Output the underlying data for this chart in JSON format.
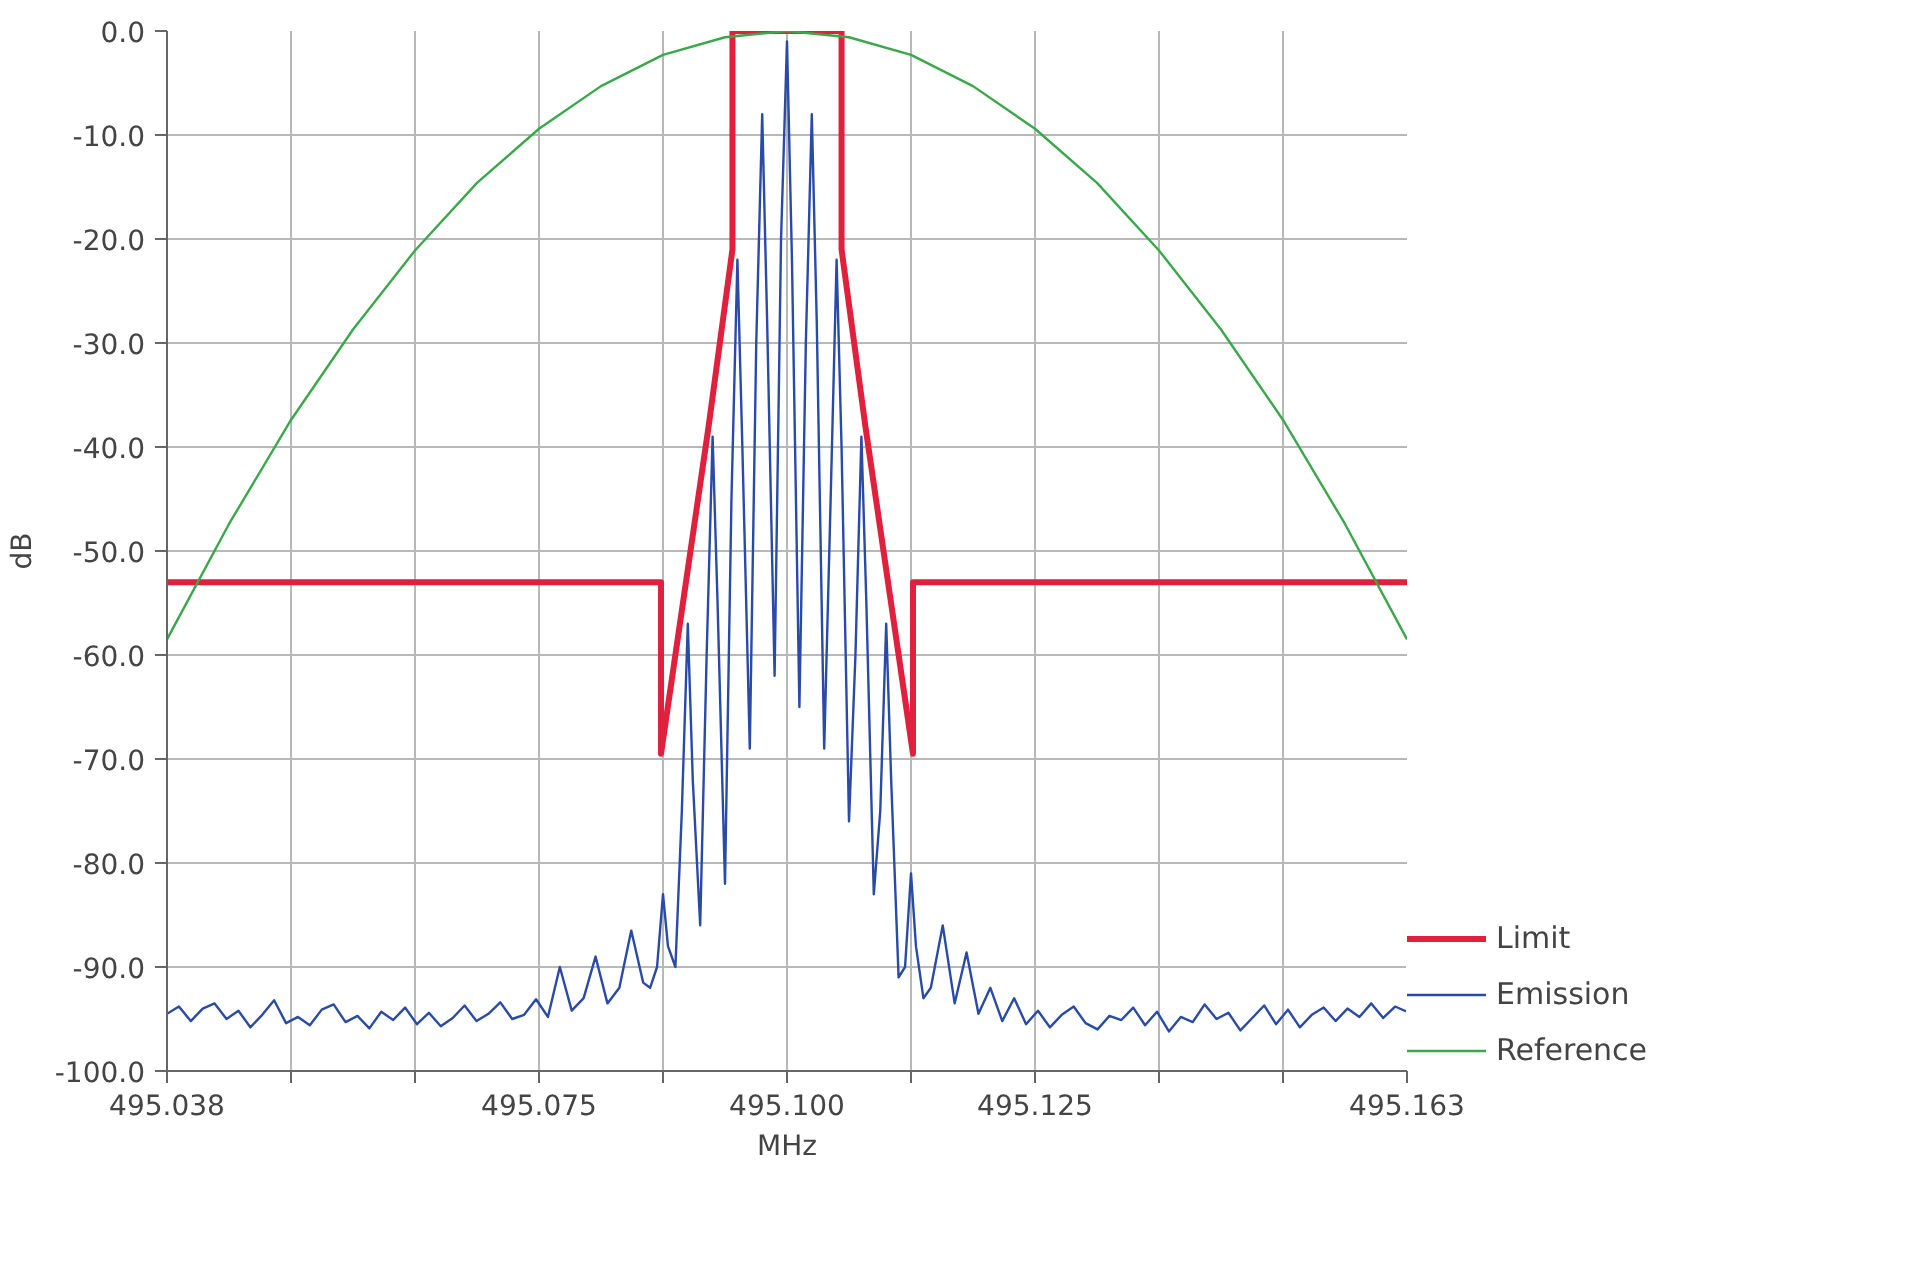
{
  "chart_data": {
    "type": "line",
    "xlabel": "MHz",
    "ylabel": "dB",
    "xlim": [
      495.0375,
      495.1625
    ],
    "ylim": [
      -100,
      0
    ],
    "xticks": [
      {
        "value": 495.0375,
        "label": "495.038"
      },
      {
        "value": 495.05,
        "label": null
      },
      {
        "value": 495.0625,
        "label": null
      },
      {
        "value": 495.075,
        "label": "495.075"
      },
      {
        "value": 495.0875,
        "label": null
      },
      {
        "value": 495.1,
        "label": "495.100"
      },
      {
        "value": 495.1125,
        "label": null
      },
      {
        "value": 495.125,
        "label": "495.125"
      },
      {
        "value": 495.1375,
        "label": null
      },
      {
        "value": 495.15,
        "label": null
      },
      {
        "value": 495.1625,
        "label": "495.163"
      }
    ],
    "yticks": [
      {
        "value": 0,
        "label": "0.0"
      },
      {
        "value": -10,
        "label": "-10.0"
      },
      {
        "value": -20,
        "label": "-20.0"
      },
      {
        "value": -30,
        "label": "-30.0"
      },
      {
        "value": -40,
        "label": "-40.0"
      },
      {
        "value": -50,
        "label": "-50.0"
      },
      {
        "value": -60,
        "label": "-60.0"
      },
      {
        "value": -70,
        "label": "-70.0"
      },
      {
        "value": -80,
        "label": "-80.0"
      },
      {
        "value": -90,
        "label": "-90.0"
      },
      {
        "value": -100,
        "label": "-100.0"
      }
    ],
    "grid": true,
    "legend": "right",
    "line_style": "solid",
    "series": [
      {
        "name": "Limit",
        "color": "#e0203c",
        "x": [
          495.0375,
          495.0873,
          495.0873,
          495.0921,
          495.0945,
          495.0945,
          495.1055,
          495.1055,
          495.1079,
          495.1127,
          495.1127,
          495.1625
        ],
        "values": [
          -53,
          -53,
          -69.5,
          -38,
          -21,
          0,
          0,
          -21,
          -38,
          -69.5,
          -53,
          -53
        ]
      },
      {
        "name": "Emission",
        "color": "#2a4aa8",
        "x": [
          495.0375,
          495.0387,
          495.0399,
          495.0411,
          495.0423,
          495.0435,
          495.0447,
          495.0459,
          495.0471,
          495.0483,
          495.0495,
          495.0507,
          495.0519,
          495.0531,
          495.0543,
          495.0555,
          495.0567,
          495.0579,
          495.0591,
          495.0603,
          495.0615,
          495.0627,
          495.0639,
          495.0651,
          495.0663,
          495.0675,
          495.0687,
          495.0699,
          495.0711,
          495.0723,
          495.0735,
          495.0747,
          495.0759,
          495.0771,
          495.0783,
          495.0795,
          495.0807,
          495.0819,
          495.0831,
          495.0843,
          495.0855,
          495.0862,
          495.0869,
          495.0875,
          495.088,
          495.08875,
          495.0894,
          495.09,
          495.0905,
          495.09125,
          495.0919,
          495.0925,
          495.093,
          495.09375,
          495.0944,
          495.095,
          495.0955,
          495.09625,
          495.0969,
          495.0975,
          495.098,
          495.09875,
          495.0994,
          495.1,
          495.1005,
          495.10125,
          495.1019,
          495.1025,
          495.103,
          495.10375,
          495.1044,
          495.105,
          495.1055,
          495.10625,
          495.1069,
          495.1075,
          495.108,
          495.10875,
          495.1094,
          495.11,
          495.1105,
          495.11125,
          495.1119,
          495.1125,
          495.113,
          495.11375,
          495.1145,
          495.1157,
          495.1169,
          495.1181,
          495.1193,
          495.1205,
          495.1217,
          495.1229,
          495.1241,
          495.1253,
          495.1265,
          495.1277,
          495.1289,
          495.1301,
          495.1313,
          495.1325,
          495.1337,
          495.1349,
          495.1361,
          495.1373,
          495.1385,
          495.1397,
          495.1409,
          495.1421,
          495.1433,
          495.1445,
          495.1457,
          495.1469,
          495.1481,
          495.1493,
          495.1505,
          495.1517,
          495.1529,
          495.1541,
          495.1553,
          495.1565,
          495.1577,
          495.1589,
          495.1601,
          495.1613,
          495.1625
        ],
        "values": [
          -94.5,
          -93.8,
          -95.2,
          -94.0,
          -93.5,
          -95.0,
          -94.2,
          -95.8,
          -94.6,
          -93.2,
          -95.4,
          -94.8,
          -95.6,
          -94.1,
          -93.6,
          -95.3,
          -94.7,
          -95.9,
          -94.3,
          -95.1,
          -93.9,
          -95.5,
          -94.4,
          -95.7,
          -94.9,
          -93.7,
          -95.2,
          -94.5,
          -93.4,
          -95.0,
          -94.6,
          -93.1,
          -94.8,
          -90.0,
          -94.2,
          -93.0,
          -89.0,
          -93.5,
          -92.0,
          -86.5,
          -91.5,
          -92,
          -90,
          -83,
          -88,
          -90,
          -75,
          -57,
          -72,
          -86,
          -60,
          -39,
          -55,
          -82,
          -45,
          -22,
          -40,
          -69,
          -30,
          -8,
          -28,
          -62,
          -20,
          -1,
          -22,
          -65,
          -30,
          -8,
          -28,
          -69,
          -45,
          -22,
          -40,
          -76,
          -60,
          -39,
          -55,
          -83,
          -75,
          -57,
          -72,
          -91,
          -90,
          -81,
          -88,
          -93,
          -92.0,
          -86.0,
          -93.5,
          -88.6,
          -94.5,
          -92.0,
          -95.2,
          -93.0,
          -95.5,
          -94.2,
          -95.8,
          -94.6,
          -93.8,
          -95.4,
          -96.0,
          -94.7,
          -95.1,
          -93.9,
          -95.6,
          -94.3,
          -96.2,
          -94.8,
          -95.3,
          -93.6,
          -95.0,
          -94.4,
          -96.1,
          -94.9,
          -93.7,
          -95.5,
          -94.1,
          -95.8,
          -94.6,
          -93.9,
          -95.2,
          -94.0,
          -94.8,
          -93.5,
          -94.9,
          -93.8,
          -94.3
        ]
      },
      {
        "name": "Reference",
        "color": "#3aa84a",
        "x": [
          495.0375,
          495.04375,
          495.05,
          495.05625,
          495.0625,
          495.06875,
          495.075,
          495.08125,
          495.0875,
          495.09375,
          495.1,
          495.10625,
          495.1125,
          495.11875,
          495.125,
          495.13125,
          495.1375,
          495.14375,
          495.15,
          495.15625,
          495.1625
        ],
        "values": [
          -58.5,
          -47.4,
          -37.4,
          -28.7,
          -21.1,
          -14.6,
          -9.4,
          -5.3,
          -2.3,
          -0.6,
          0,
          -0.6,
          -2.3,
          -5.3,
          -9.4,
          -14.6,
          -21.1,
          -28.7,
          -37.4,
          -47.4,
          -58.5
        ]
      }
    ]
  }
}
